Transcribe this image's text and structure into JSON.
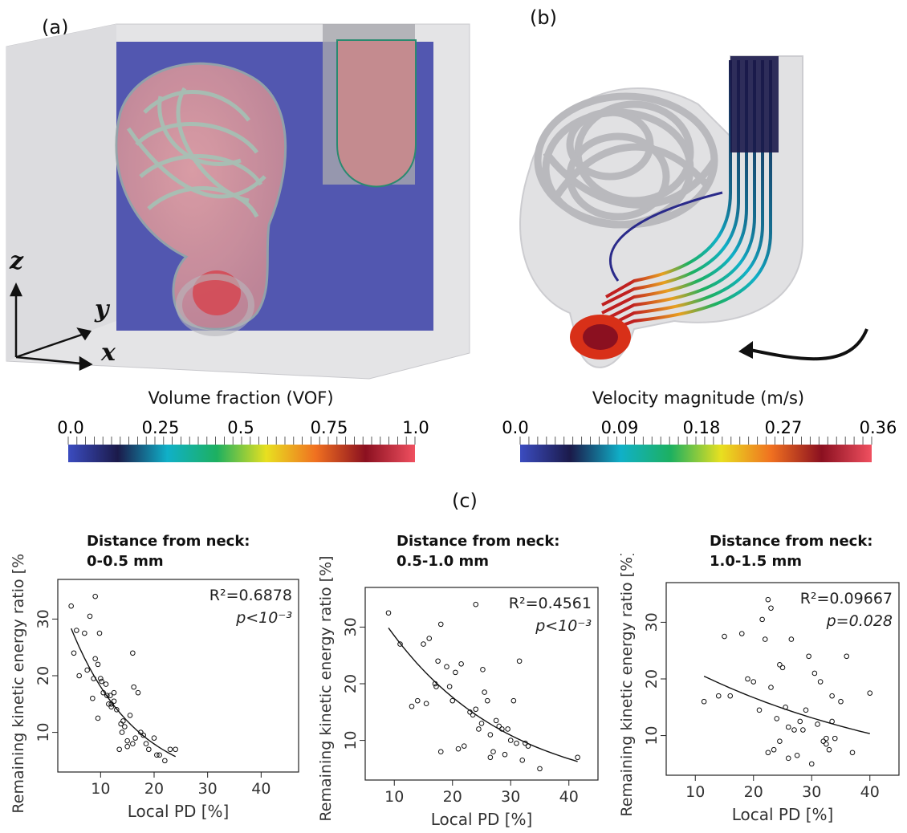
{
  "panel_labels": {
    "a": "(a)",
    "b": "(b)",
    "c": "(c)"
  },
  "panel_a": {
    "axes": {
      "z": "z",
      "y": "y",
      "x": "x"
    },
    "colorbar": {
      "title": "Volume fraction (VOF)",
      "ticks": [
        "0.0",
        "0.25",
        "0.5",
        "0.75",
        "1.0"
      ]
    }
  },
  "panel_b": {
    "colorbar": {
      "title": "Velocity magnitude (m/s)",
      "ticks": [
        "0.0",
        "0.09",
        "0.18",
        "0.27",
        "0.36"
      ]
    }
  },
  "colors": {
    "map": [
      "#3b4cc0",
      "#1b1a4a",
      "#10b0c8",
      "#1db060",
      "#e8e020",
      "#f07020",
      "#8b1020",
      "#f05060"
    ],
    "domain_blue": "#5257b0"
  },
  "chart_data": [
    {
      "type": "scatter",
      "title_line1": "Distance from neck:",
      "title_line2": "0-0.5 mm",
      "xlabel": "Local PD [%]",
      "ylabel": "Remaining kinetic energy ratio [%]",
      "xlim": [
        2,
        47
      ],
      "ylim": [
        3,
        37
      ],
      "xticks": [
        "10",
        "20",
        "30",
        "40"
      ],
      "yticks": [
        "10",
        "20",
        "30"
      ],
      "annotation_r2": "R²=0.6878",
      "annotation_p": "p<10⁻³",
      "fit": {
        "a": 41.0,
        "b": -0.082
      },
      "x": [
        4.5,
        5.0,
        5.5,
        6.0,
        7.0,
        8.0,
        8.5,
        9.0,
        9.5,
        9.8,
        9.5,
        10.0,
        10.5,
        11.0,
        11.2,
        11.5,
        12.0,
        12.5,
        13.0,
        13.5,
        14.0,
        14.2,
        15.0,
        15.5,
        16.0,
        16.2,
        16.5,
        17.0,
        17.5,
        18.0,
        18.5,
        19.0,
        20.0,
        21.0,
        22.0,
        23.0,
        24.0,
        16.0,
        12.5,
        14.5,
        9.0,
        7.5,
        10.2,
        8.7,
        11.8,
        13.8,
        20.5,
        15.0,
        12.0
      ],
      "y": [
        32.3,
        24.0,
        28.0,
        20.0,
        27.5,
        30.5,
        16.0,
        34.0,
        22.0,
        27.5,
        12.5,
        19.5,
        17.0,
        18.5,
        16.5,
        15.0,
        14.5,
        17.0,
        14.0,
        7.0,
        10.0,
        12.0,
        8.5,
        13.0,
        24.0,
        18.0,
        9.0,
        17.0,
        10.0,
        9.5,
        8.0,
        7.0,
        9.0,
        6.0,
        5.0,
        7.0,
        7.0,
        8.0,
        15.5,
        11.0,
        23.0,
        21.0,
        19.0,
        19.5,
        16.5,
        11.5,
        6.0,
        7.5,
        15.0
      ]
    },
    {
      "type": "scatter",
      "title_line1": "Distance from neck:",
      "title_line2": "0.5-1.0 mm",
      "xlabel": "Local PD [%]",
      "ylabel": "Remaining kinetic energy ratio [%]",
      "xlim": [
        5,
        45
      ],
      "ylim": [
        3,
        37
      ],
      "xticks": [
        "10",
        "20",
        "30",
        "40"
      ],
      "yticks": [
        "10",
        "20",
        "30"
      ],
      "annotation_r2": "R²=0.4561",
      "annotation_p": "p<10⁻³",
      "fit": {
        "a": 46.0,
        "b": -0.048
      },
      "x": [
        9.0,
        11.0,
        13.0,
        14.0,
        15.0,
        16.0,
        17.0,
        17.2,
        17.5,
        18.0,
        18.0,
        19.0,
        20.0,
        20.5,
        21.0,
        22.0,
        23.0,
        23.5,
        24.0,
        24.5,
        25.0,
        25.2,
        25.5,
        26.0,
        26.5,
        27.0,
        28.0,
        28.5,
        29.0,
        30.0,
        30.5,
        31.0,
        31.5,
        32.0,
        33.0,
        35.0,
        41.5,
        15.5,
        24.0,
        21.5,
        19.5,
        26.5,
        27.5,
        29.5,
        32.5
      ],
      "y": [
        32.5,
        27.0,
        16.0,
        17.0,
        27.0,
        28.0,
        20.0,
        19.5,
        24.0,
        30.5,
        8.0,
        23.0,
        17.0,
        22.0,
        8.5,
        9.0,
        15.0,
        14.5,
        34.0,
        12.0,
        13.0,
        22.5,
        18.5,
        17.0,
        7.0,
        8.0,
        12.5,
        12.0,
        7.5,
        10.0,
        17.0,
        9.5,
        24.0,
        6.5,
        9.0,
        5.0,
        7.0,
        16.5,
        15.5,
        23.5,
        19.5,
        11.0,
        13.5,
        12.0,
        9.5
      ]
    },
    {
      "type": "scatter",
      "title_line1": "Distance from neck:",
      "title_line2": "1.0-1.5 mm",
      "xlabel": "Local PD [%]",
      "ylabel": "Remaining kinetic energy ratio [%]",
      "xlim": [
        5,
        45
      ],
      "ylim": [
        3,
        37
      ],
      "xticks": [
        "10",
        "20",
        "30",
        "40"
      ],
      "yticks": [
        "10",
        "20",
        "30"
      ],
      "annotation_r2": "R²=0.09667",
      "annotation_p": "p=0.028",
      "fit": {
        "a": 27.0,
        "b": -0.024
      },
      "x": [
        11.5,
        14.0,
        15.0,
        16.0,
        18.0,
        19.0,
        20.0,
        21.0,
        21.5,
        22.0,
        22.5,
        22.5,
        23.0,
        23.5,
        24.0,
        24.5,
        25.0,
        25.5,
        26.0,
        26.5,
        27.0,
        27.5,
        28.0,
        29.0,
        29.5,
        30.0,
        30.5,
        31.0,
        31.5,
        32.0,
        32.5,
        33.0,
        33.5,
        34.0,
        35.0,
        36.0,
        37.0,
        40.0,
        23.0,
        26.0,
        28.5,
        32.5,
        24.5,
        33.5
      ],
      "y": [
        16.0,
        17.0,
        27.5,
        17.0,
        28.0,
        20.0,
        19.5,
        14.5,
        30.5,
        27.0,
        34.0,
        7.0,
        32.5,
        7.5,
        13.0,
        9.0,
        22.0,
        15.0,
        11.5,
        27.0,
        11.0,
        6.5,
        12.5,
        14.5,
        24.0,
        5.0,
        21.0,
        12.0,
        19.5,
        9.0,
        8.5,
        7.5,
        17.0,
        9.5,
        16.0,
        24.0,
        7.0,
        17.5,
        18.5,
        6.0,
        11.0,
        9.5,
        22.5,
        12.5
      ]
    }
  ]
}
